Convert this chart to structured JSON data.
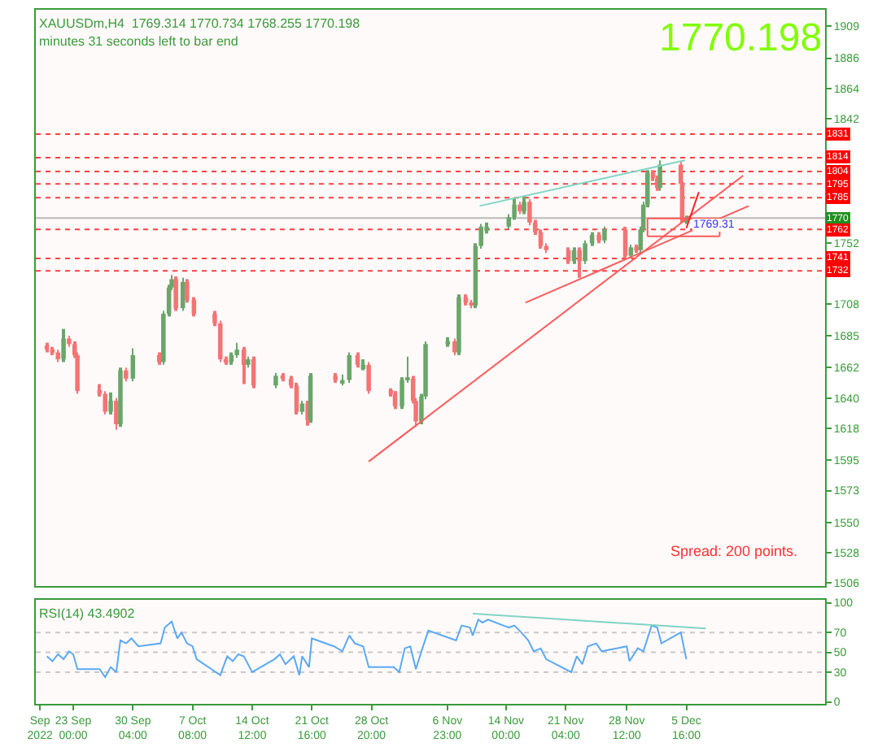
{
  "chart_data": [
    {
      "type": "candlestick",
      "title": "XAUUSDm,H4  1769.314 1770.734 1768.255 1770.198",
      "subtitle": "minutes 31 seconds left to bar end",
      "annotations": [
        "1770.198",
        "Spread: 200 points.",
        {
          "text": "1769.31",
          "x": "2022-12-09T00:00",
          "y": 1765
        }
      ],
      "tick_labels": "y",
      "grid": false,
      "xlim": [
        "2022-09-18T12:00",
        "2022-12-22T08:00"
      ],
      "ylim": [
        1504,
        1921
      ],
      "yticks": [
        1909,
        1886,
        1864,
        1842,
        1752,
        1708,
        1685,
        1662,
        1640,
        1618,
        1595,
        1573,
        1550,
        1528,
        1506
      ],
      "ref_lines": [
        {
          "axis": "y",
          "value": 1831,
          "label": "1831",
          "color": "#ff4040",
          "line_style": "dotted"
        },
        {
          "axis": "y",
          "value": 1814,
          "label": "1814",
          "color": "#ff4040",
          "line_style": "dotted"
        },
        {
          "axis": "y",
          "value": 1804,
          "label": "1804",
          "color": "#ff4040",
          "line_style": "dotted"
        },
        {
          "axis": "y",
          "value": 1795,
          "label": "1795",
          "color": "#ff4040",
          "line_style": "dotted"
        },
        {
          "axis": "y",
          "value": 1785,
          "label": "1785",
          "color": "#ff4040",
          "line_style": "dotted"
        },
        {
          "axis": "y",
          "value": 1770.198,
          "label": "1770",
          "color": "#b8b8b8",
          "line_style": "solid"
        },
        {
          "axis": "y",
          "value": 1762,
          "label": "1762",
          "color": "#ff4040",
          "line_style": "dotted"
        },
        {
          "axis": "y",
          "value": 1741,
          "label": "1741",
          "color": "#ff4040",
          "line_style": "dotted"
        },
        {
          "axis": "y",
          "value": 1732,
          "label": "1732",
          "color": "#ff4040",
          "line_style": "dotted"
        }
      ],
      "series": [
        {
          "x": [
            "2022-09-19T20:00",
            "2022-09-20T12:00",
            "2022-09-21T04:00",
            "2022-09-21T20:00",
            "2022-09-22T12:00",
            "2022-09-23T04:00",
            "2022-09-23T12:00",
            "2022-09-26T04:00",
            "2022-09-26T20:00",
            "2022-09-27T12:00",
            "2022-09-28T04:00",
            "2022-09-28T16:00",
            "2022-09-29T08:00",
            "2022-09-30T04:00",
            "2022-10-03T08:00",
            "2022-10-03T20:00",
            "2022-10-04T12:00",
            "2022-10-04T20:00",
            "2022-10-05T08:00",
            "2022-10-06T04:00",
            "2022-10-06T16:00",
            "2022-10-07T12:00",
            "2022-10-10T00:00",
            "2022-10-10T16:00",
            "2022-10-11T08:00",
            "2022-10-12T00:00",
            "2022-10-12T16:00",
            "2022-10-13T12:00",
            "2022-10-14T00:00",
            "2022-10-14T16:00",
            "2022-10-17T08:00",
            "2022-10-18T04:00",
            "2022-10-19T04:00",
            "2022-10-19T20:00",
            "2022-10-20T12:00",
            "2022-10-21T04:00",
            "2022-10-21T12:00",
            "2022-10-24T12:00",
            "2022-10-25T08:00",
            "2022-10-26T04:00",
            "2022-10-27T04:00",
            "2022-10-27T20:00",
            "2022-10-28T12:00",
            "2022-10-31T04:00",
            "2022-10-31T16:00",
            "2022-11-01T12:00",
            "2022-11-02T04:00",
            "2022-11-02T20:00",
            "2022-11-03T04:00",
            "2022-11-03T20:00",
            "2022-11-04T08:00",
            "2022-11-07T00:00",
            "2022-11-07T20:00",
            "2022-11-08T08:00",
            "2022-11-09T04:00",
            "2022-11-09T20:00",
            "2022-11-10T08:00",
            "2022-11-11T00:00",
            "2022-11-11T16:00",
            "2022-11-14T08:00",
            "2022-11-15T00:00",
            "2022-11-15T16:00",
            "2022-11-16T04:00",
            "2022-11-16T20:00",
            "2022-11-17T12:00",
            "2022-11-18T04:00",
            "2022-11-18T20:00",
            "2022-11-21T12:00",
            "2022-11-22T04:00",
            "2022-11-22T20:00",
            "2022-11-23T12:00",
            "2022-11-24T08:00",
            "2022-11-25T04:00",
            "2022-11-25T20:00",
            "2022-11-28T08:00",
            "2022-11-29T00:00",
            "2022-11-29T16:00",
            "2022-11-30T04:00",
            "2022-11-30T12:00",
            "2022-12-01T00:00",
            "2022-12-01T16:00",
            "2022-12-02T04:00",
            "2022-12-02T12:00",
            "2022-12-05T00:00",
            "2022-12-05T04:00",
            "2022-12-05T16:00"
          ],
          "ohlc": [
            [
              1678,
              1680,
              1673,
              1675
            ],
            [
              1675,
              1677,
              1671,
              1673
            ],
            [
              1673,
              1675,
              1666,
              1668
            ],
            [
              1668,
              1690,
              1666,
              1683
            ],
            [
              1683,
              1685,
              1677,
              1679
            ],
            [
              1679,
              1681,
              1669,
              1671
            ],
            [
              1671,
              1673,
              1643,
              1645
            ],
            [
              1645,
              1650,
              1641,
              1643
            ],
            [
              1643,
              1645,
              1628,
              1630
            ],
            [
              1630,
              1644,
              1628,
              1638
            ],
            [
              1638,
              1640,
              1617,
              1621
            ],
            [
              1621,
              1662,
              1619,
              1660
            ],
            [
              1660,
              1662,
              1652,
              1654
            ],
            [
              1654,
              1676,
              1652,
              1671
            ],
            [
              1671,
              1673,
              1664,
              1666
            ],
            [
              1666,
              1703,
              1664,
              1701
            ],
            [
              1701,
              1722,
              1699,
              1720
            ],
            [
              1720,
              1729,
              1718,
              1726
            ],
            [
              1726,
              1728,
              1703,
              1705
            ],
            [
              1705,
              1727,
              1703,
              1724
            ],
            [
              1724,
              1726,
              1709,
              1711
            ],
            [
              1711,
              1713,
              1699,
              1701
            ],
            [
              1701,
              1703,
              1692,
              1694
            ],
            [
              1694,
              1696,
              1666,
              1668
            ],
            [
              1668,
              1670,
              1664,
              1666
            ],
            [
              1666,
              1673,
              1664,
              1671
            ],
            [
              1671,
              1680,
              1669,
              1675
            ],
            [
              1675,
              1677,
              1650,
              1664
            ],
            [
              1664,
              1670,
              1662,
              1668
            ],
            [
              1668,
              1670,
              1647,
              1649
            ],
            [
              1649,
              1658,
              1647,
              1656
            ],
            [
              1656,
              1658,
              1652,
              1654
            ],
            [
              1654,
              1656,
              1647,
              1649
            ],
            [
              1649,
              1651,
              1628,
              1630
            ],
            [
              1630,
              1638,
              1628,
              1636
            ],
            [
              1636,
              1638,
              1620,
              1624
            ],
            [
              1624,
              1658,
              1622,
              1656
            ],
            [
              1656,
              1658,
              1651,
              1653
            ],
            [
              1651,
              1657,
              1649,
              1653
            ],
            [
              1653,
              1673,
              1651,
              1671
            ],
            [
              1671,
              1673,
              1662,
              1664
            ],
            [
              1662,
              1668,
              1660,
              1664
            ],
            [
              1664,
              1666,
              1643,
              1645
            ],
            [
              1645,
              1647,
              1641,
              1643
            ],
            [
              1643,
              1645,
              1632,
              1634
            ],
            [
              1634,
              1655,
              1632,
              1653
            ],
            [
              1653,
              1670,
              1651,
              1654
            ],
            [
              1654,
              1656,
              1636,
              1638
            ],
            [
              1638,
              1640,
              1619,
              1623
            ],
            [
              1623,
              1643,
              1621,
              1641
            ],
            [
              1641,
              1681,
              1639,
              1679
            ],
            [
              1679,
              1684,
              1677,
              1681
            ],
            [
              1681,
              1683,
              1671,
              1673
            ],
            [
              1673,
              1715,
              1671,
              1713
            ],
            [
              1713,
              1715,
              1707,
              1709
            ],
            [
              1709,
              1711,
              1705,
              1707
            ],
            [
              1707,
              1752,
              1705,
              1750
            ],
            [
              1750,
              1766,
              1748,
              1764
            ],
            [
              1761,
              1767,
              1759,
              1764
            ],
            [
              1764,
              1773,
              1762,
              1771
            ],
            [
              1771,
              1785,
              1769,
              1780
            ],
            [
              1780,
              1782,
              1773,
              1775
            ],
            [
              1775,
              1786,
              1773,
              1782
            ],
            [
              1782,
              1784,
              1765,
              1767
            ],
            [
              1767,
              1769,
              1758,
              1760
            ],
            [
              1760,
              1762,
              1748,
              1750
            ],
            [
              1750,
              1752,
              1745,
              1747
            ],
            [
              1747,
              1749,
              1737,
              1739
            ],
            [
              1739,
              1749,
              1737,
              1747
            ],
            [
              1747,
              1749,
              1727,
              1739
            ],
            [
              1739,
              1754,
              1737,
              1752
            ],
            [
              1752,
              1760,
              1750,
              1758
            ],
            [
              1758,
              1760,
              1752,
              1754
            ],
            [
              1754,
              1764,
              1752,
              1762
            ],
            [
              1762,
              1764,
              1741,
              1743
            ],
            [
              1743,
              1751,
              1741,
              1749
            ],
            [
              1749,
              1751,
              1745,
              1747
            ],
            [
              1747,
              1764,
              1745,
              1762
            ],
            [
              1762,
              1782,
              1760,
              1780
            ],
            [
              1780,
              1805,
              1778,
              1803
            ],
            [
              1803,
              1805,
              1797,
              1799
            ],
            [
              1799,
              1801,
              1790,
              1792
            ],
            [
              1792,
              1812,
              1790,
              1809
            ],
            [
              1809,
              1811,
              1793,
              1795
            ],
            [
              1795,
              1797,
              1767,
              1769
            ],
            [
              1767,
              1772,
              1766,
              1770
            ]
          ],
          "colors": [
            "#f47474",
            "#f47474",
            "#f47474",
            "#6aa66a",
            "#f47474",
            "#f47474",
            "#f47474",
            "#f47474",
            "#f47474",
            "#6aa66a",
            "#f47474",
            "#6aa66a",
            "#f47474",
            "#6aa66a",
            "#f47474",
            "#6aa66a",
            "#6aa66a",
            "#6aa66a",
            "#f47474",
            "#6aa66a",
            "#f47474",
            "#f47474",
            "#f47474",
            "#f47474",
            "#f47474",
            "#6aa66a",
            "#6aa66a",
            "#f47474",
            "#6aa66a",
            "#f47474",
            "#6aa66a",
            "#f47474",
            "#f47474",
            "#f47474",
            "#6aa66a",
            "#f47474",
            "#6aa66a",
            "#f47474",
            "#6aa66a",
            "#6aa66a",
            "#f47474",
            "#6aa66a",
            "#f47474",
            "#f47474",
            "#f47474",
            "#6aa66a",
            "#6aa66a",
            "#f47474",
            "#f47474",
            "#6aa66a",
            "#6aa66a",
            "#6aa66a",
            "#f47474",
            "#6aa66a",
            "#f47474",
            "#f47474",
            "#6aa66a",
            "#6aa66a",
            "#6aa66a",
            "#6aa66a",
            "#6aa66a",
            "#f47474",
            "#6aa66a",
            "#f47474",
            "#f47474",
            "#f47474",
            "#f47474",
            "#f47474",
            "#6aa66a",
            "#f47474",
            "#6aa66a",
            "#6aa66a",
            "#f47474",
            "#6aa66a",
            "#f47474",
            "#6aa66a",
            "#f47474",
            "#6aa66a",
            "#6aa66a",
            "#6aa66a",
            "#f47474",
            "#f47474",
            "#6aa66a",
            "#f47474",
            "#f47474",
            "#6aa66a"
          ]
        },
        {
          "type": "line",
          "color": "#7fd4c4",
          "x": [
            "2022-11-10T20:00",
            "2022-12-05T12:00"
          ],
          "values": [
            1779,
            1812
          ]
        },
        {
          "type": "line",
          "color": "#ff5a5a",
          "x": [
            "2022-10-28T12:00",
            "2022-12-12T12:00"
          ],
          "values": [
            1594,
            1801
          ]
        },
        {
          "type": "line",
          "color": "#ff5a5a",
          "x": [
            "2022-11-16T08:00",
            "2022-12-13T04:00"
          ],
          "values": [
            1709,
            1779
          ]
        },
        {
          "type": "line",
          "color": "#ff5a5a",
          "x": [
            "2022-12-01T00:00",
            "2022-12-09T16:00"
          ],
          "values": [
            1770,
            1770
          ]
        },
        {
          "type": "line",
          "color": "#ff5a5a",
          "x": [
            "2022-12-01T00:00",
            "2022-12-09T16:00"
          ],
          "values": [
            1757,
            1757
          ]
        },
        {
          "type": "line",
          "color": "#ff5a5a",
          "x": [
            "2022-12-01T00:00",
            "2022-12-01T00:00"
          ],
          "values": [
            1757,
            1770
          ]
        },
        {
          "type": "line",
          "color": "#ff5a5a",
          "x": [
            "2022-12-09T16:00",
            "2022-12-09T16:00"
          ],
          "values": [
            1757,
            1770
          ]
        },
        {
          "type": "line",
          "color": "#ff2020",
          "x": [
            "2022-12-05T16:00",
            "2022-12-07T04:00"
          ],
          "values": [
            1763,
            1789
          ]
        }
      ]
    },
    {
      "type": "line",
      "title": "RSI(14) 43.4902",
      "grid": false,
      "xlim": [
        "2022-09-18T12:00",
        "2022-12-22T08:00"
      ],
      "ylim": [
        -2,
        103
      ],
      "xticks": [
        {
          "value": "2022-09-19T00:00",
          "label": "Sep 2022"
        },
        {
          "value": "2022-09-23T00:00",
          "label": "23 Sep 00:00"
        },
        {
          "value": "2022-09-30T04:00",
          "label": "30 Sep 04:00"
        },
        {
          "value": "2022-10-07T08:00",
          "label": "7 Oct 08:00"
        },
        {
          "value": "2022-10-14T12:00",
          "label": "14 Oct 12:00"
        },
        {
          "value": "2022-10-21T16:00",
          "label": "21 Oct 16:00"
        },
        {
          "value": "2022-10-28T20:00",
          "label": "28 Oct 20:00"
        },
        {
          "value": "2022-11-06T23:00",
          "label": "6 Nov 23:00"
        },
        {
          "value": "2022-11-14T00:00",
          "label": "14 Nov 00:00"
        },
        {
          "value": "2022-11-21T04:00",
          "label": "21 Nov 04:00"
        },
        {
          "value": "2022-11-28T12:00",
          "label": "28 Nov 12:00"
        },
        {
          "value": "2022-12-05T16:00",
          "label": "5 Dec 16:00"
        }
      ],
      "yticks": [
        0,
        30,
        50,
        70,
        100
      ],
      "ref_lines": [
        {
          "axis": "y",
          "value": 30,
          "color": "#c8c8c8",
          "line_style": "dotted"
        },
        {
          "axis": "y",
          "value": 50,
          "color": "#c8c8c8",
          "line_style": "dotted"
        },
        {
          "axis": "y",
          "value": 70,
          "color": "#c8c8c8",
          "line_style": "dotted"
        }
      ],
      "series": [
        {
          "color": "#5aa9f5",
          "x": [
            "2022-09-19T20:00",
            "2022-09-20T12:00",
            "2022-09-21T04:00",
            "2022-09-21T20:00",
            "2022-09-22T12:00",
            "2022-09-23T00:00",
            "2022-09-23T12:00",
            "2022-09-26T04:00",
            "2022-09-26T20:00",
            "2022-09-27T12:00",
            "2022-09-28T04:00",
            "2022-09-28T16:00",
            "2022-09-29T08:00",
            "2022-09-30T00:00",
            "2022-09-30T20:00",
            "2022-10-03T12:00",
            "2022-10-04T00:00",
            "2022-10-04T20:00",
            "2022-10-05T12:00",
            "2022-10-06T00:00",
            "2022-10-06T16:00",
            "2022-10-07T08:00",
            "2022-10-07T20:00",
            "2022-10-10T16:00",
            "2022-10-11T12:00",
            "2022-10-12T04:00",
            "2022-10-12T20:00",
            "2022-10-13T12:00",
            "2022-10-14T12:00",
            "2022-10-17T04:00",
            "2022-10-17T20:00",
            "2022-10-18T12:00",
            "2022-10-19T12:00",
            "2022-10-20T04:00",
            "2022-10-20T12:00",
            "2022-10-21T08:00",
            "2022-10-21T16:00",
            "2022-10-24T08:00",
            "2022-10-25T08:00",
            "2022-10-26T04:00",
            "2022-10-26T20:00",
            "2022-10-27T20:00",
            "2022-10-28T12:00",
            "2022-10-31T12:00",
            "2022-11-01T04:00",
            "2022-11-01T20:00",
            "2022-11-02T12:00",
            "2022-11-03T04:00",
            "2022-11-03T20:00",
            "2022-11-04T16:00",
            "2022-11-07T08:00",
            "2022-11-08T00:00",
            "2022-11-08T16:00",
            "2022-11-09T16:00",
            "2022-11-10T00:00",
            "2022-11-10T16:00",
            "2022-11-11T04:00",
            "2022-11-11T20:00",
            "2022-11-14T08:00",
            "2022-11-15T00:00",
            "2022-11-15T20:00",
            "2022-11-16T16:00",
            "2022-11-17T08:00",
            "2022-11-18T04:00",
            "2022-11-18T20:00",
            "2022-11-21T20:00",
            "2022-11-22T12:00",
            "2022-11-23T04:00",
            "2022-11-23T20:00",
            "2022-11-24T20:00",
            "2022-11-25T12:00",
            "2022-11-28T12:00",
            "2022-11-28T20:00",
            "2022-11-29T20:00",
            "2022-11-30T12:00",
            "2022-12-01T12:00",
            "2022-12-02T04:00",
            "2022-12-02T16:00",
            "2022-12-05T00:00",
            "2022-12-05T16:00"
          ],
          "values": [
            46,
            41,
            48,
            43,
            51,
            48,
            33,
            33,
            25,
            35,
            30,
            62,
            59,
            64,
            56,
            59,
            75,
            81,
            64,
            70,
            59,
            56,
            43,
            27,
            46,
            41,
            48,
            46,
            30,
            43,
            48,
            38,
            46,
            27,
            46,
            35,
            64,
            56,
            51,
            67,
            59,
            56,
            35,
            35,
            30,
            54,
            56,
            33,
            51,
            72,
            64,
            62,
            77,
            75,
            67,
            83,
            80,
            83,
            75,
            77,
            70,
            62,
            51,
            54,
            43,
            30,
            46,
            38,
            56,
            59,
            51,
            56,
            41,
            54,
            51,
            77,
            75,
            59,
            70,
            43
          ]
        },
        {
          "type": "line",
          "color": "#7fd4c4",
          "x": [
            "2022-11-10T00:00",
            "2022-12-08T00:00"
          ],
          "values": [
            89,
            74
          ]
        }
      ]
    }
  ]
}
